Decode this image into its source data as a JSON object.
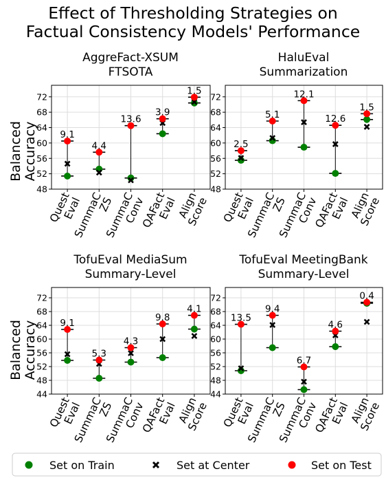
{
  "figure": {
    "title_line1": "Effect of Thresholding Strategies on",
    "title_line2": "Factual Consistency Models' Performance",
    "ylabel_line1": "Balanced",
    "ylabel_line2": "Accuracy"
  },
  "legend": {
    "train": "Set on Train",
    "center": "Set at Center",
    "test": "Set on Test"
  },
  "colors": {
    "train": "#008000",
    "center": "#000000",
    "test": "#ff0000"
  },
  "chart_data": [
    {
      "type": "scatter",
      "title_line1": "AggreFact-XSUM",
      "title_line2": "FTSOTA",
      "categories": [
        [
          "Quest",
          "Eval"
        ],
        [
          "SummaC",
          "ZS"
        ],
        [
          "SummaC",
          "Conv"
        ],
        [
          "QAFact",
          "Eval"
        ],
        [
          "Align",
          "Score"
        ]
      ],
      "ylim": [
        48,
        75
      ],
      "yticks": [
        48,
        52,
        56,
        60,
        64,
        68,
        72
      ],
      "series": [
        {
          "name": "Set on Train",
          "values": [
            51.4,
            53.2,
            50.9,
            62.4,
            70.4
          ]
        },
        {
          "name": "Set at Center",
          "values": [
            54.6,
            52.3,
            50.3,
            65.2,
            70.7
          ]
        },
        {
          "name": "Set on Test",
          "values": [
            60.5,
            57.6,
            64.5,
            66.3,
            71.9
          ]
        }
      ],
      "annotations": [
        "9.1",
        "4.4",
        "13.6",
        "3.9",
        "1.5"
      ]
    },
    {
      "type": "scatter",
      "title_line1": "HaluEval",
      "title_line2": "Summarization",
      "categories": [
        [
          "Quest",
          "Eval"
        ],
        [
          "SummaC",
          "ZS"
        ],
        [
          "SummaC",
          "Conv"
        ],
        [
          "QAFact",
          "Eval"
        ],
        [
          "Align",
          "Score"
        ]
      ],
      "ylim": [
        48,
        75
      ],
      "yticks": [
        48,
        52,
        56,
        60,
        64,
        68,
        72
      ],
      "series": [
        {
          "name": "Set on Train",
          "values": [
            55.5,
            60.6,
            58.9,
            52.1,
            66.1
          ]
        },
        {
          "name": "Set at Center",
          "values": [
            56.1,
            61.3,
            65.4,
            59.7,
            64.2
          ]
        },
        {
          "name": "Set on Test",
          "values": [
            58.0,
            65.7,
            71.0,
            64.6,
            67.6
          ]
        }
      ],
      "annotations": [
        "2.5",
        "5.1",
        "12.1",
        "12.6",
        "1.5"
      ]
    },
    {
      "type": "scatter",
      "title_line1": "TofuEval MediaSum",
      "title_line2": "Summary-Level",
      "categories": [
        [
          "Quest",
          "Eval"
        ],
        [
          "SummaC",
          "ZS"
        ],
        [
          "SummaC",
          "Conv"
        ],
        [
          "QAFact",
          "Eval"
        ],
        [
          "Align",
          "Score"
        ]
      ],
      "ylim": [
        44,
        75
      ],
      "yticks": [
        44,
        48,
        52,
        56,
        60,
        64,
        68,
        72
      ],
      "series": [
        {
          "name": "Set on Train",
          "values": [
            53.8,
            48.6,
            53.3,
            54.6,
            62.9
          ]
        },
        {
          "name": "Set at Center",
          "values": [
            55.6,
            52.8,
            55.9,
            60.0,
            60.9
          ]
        },
        {
          "name": "Set on Test",
          "values": [
            62.8,
            53.9,
            57.5,
            64.4,
            66.9
          ]
        }
      ],
      "annotations": [
        "9.1",
        "5.3",
        "4.3",
        "9.8",
        "4.1"
      ]
    },
    {
      "type": "scatter",
      "title_line1": "TofuEval MeetingBank",
      "title_line2": "Summary-Level",
      "categories": [
        [
          "Quest",
          "Eval"
        ],
        [
          "SummaC",
          "ZS"
        ],
        [
          "SummaC",
          "Conv"
        ],
        [
          "QAFact",
          "Eval"
        ],
        [
          "Align",
          "Score"
        ]
      ],
      "ylim": [
        44,
        75
      ],
      "yticks": [
        44,
        48,
        52,
        56,
        60,
        64,
        68,
        72
      ],
      "series": [
        {
          "name": "Set on Train",
          "values": [
            50.8,
            57.5,
            45.3,
            57.8,
            70.4
          ]
        },
        {
          "name": "Set at Center",
          "values": [
            51.5,
            64.1,
            47.6,
            61.1,
            65.0
          ]
        },
        {
          "name": "Set on Test",
          "values": [
            64.3,
            66.9,
            51.9,
            62.3,
            70.7
          ]
        }
      ],
      "annotations": [
        "13.5",
        "9.4",
        "6.7",
        "4.6",
        "0.4"
      ]
    }
  ]
}
